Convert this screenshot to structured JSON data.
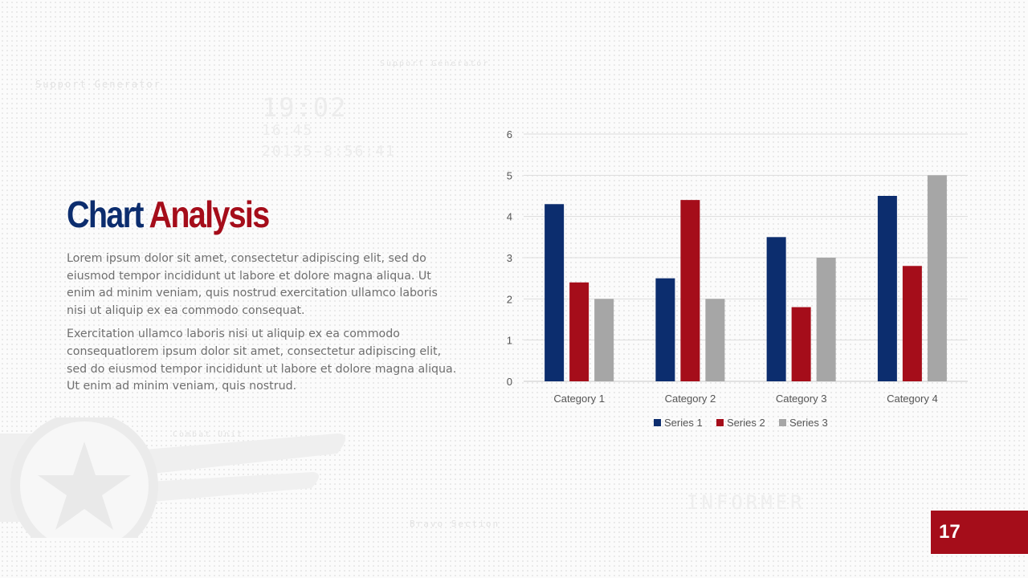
{
  "slide": {
    "title_part1": "Chart",
    "title_part2": "Analysis",
    "paragraph1": "Lorem ipsum dolor sit amet, consectetur adipiscing elit, sed do eiusmod tempor incididunt ut labore et dolore magna aliqua. Ut enim ad minim veniam, quis nostrud exercitation ullamco laboris nisi ut aliquip ex ea commodo consequat.",
    "paragraph2": "Exercitation ullamco laboris nisi ut aliquip ex ea commodo consequatlorem ipsum dolor sit amet, consectetur adipiscing elit, sed do eiusmod tempor incididunt ut labore et dolore magna aliqua. Ut enim ad minim veniam, quis nostrud.",
    "page_number": "17"
  },
  "background": {
    "support_generator": "Support Generator",
    "time1": "19:02",
    "time2": "16:45",
    "time3": "20135-8:56:41",
    "informer": "INFORMER",
    "combat_unit": "Combat Unit",
    "bravo_section": "Bravo Section"
  },
  "colors": {
    "title_blue": "#0c2d6e",
    "title_red": "#a50d1a",
    "series1": "#0c2d6e",
    "series2": "#a50d1a",
    "series3": "#a6a6a6"
  },
  "chart_data": {
    "type": "bar",
    "categories": [
      "Category 1",
      "Category 2",
      "Category 3",
      "Category 4"
    ],
    "series": [
      {
        "name": "Series 1",
        "values": [
          4.3,
          2.5,
          3.5,
          4.5
        ]
      },
      {
        "name": "Series 2",
        "values": [
          2.4,
          4.4,
          1.8,
          2.8
        ]
      },
      {
        "name": "Series 3",
        "values": [
          2,
          2,
          3,
          5
        ]
      }
    ],
    "ylim": [
      0,
      6
    ],
    "yticks": [
      "0",
      "1",
      "2",
      "3",
      "4",
      "5",
      "6"
    ],
    "grid": true,
    "legend_position": "bottom"
  }
}
